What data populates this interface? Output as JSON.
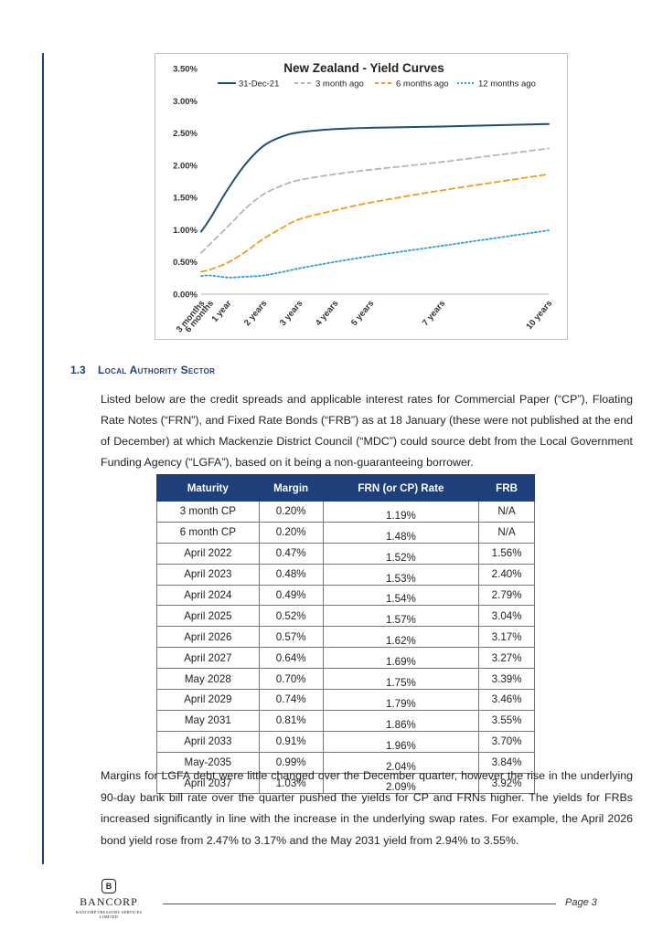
{
  "chart_data": {
    "type": "line",
    "title": "New Zealand - Yield Curves",
    "categories": [
      "3 months",
      "6 months",
      "1 year",
      "2 years",
      "3 years",
      "4 years",
      "5 years",
      "7 years",
      "10 years"
    ],
    "category_positions": [
      0.25,
      0.5,
      1,
      2,
      3,
      4,
      5,
      7,
      10
    ],
    "ylim": [
      0,
      3.5
    ],
    "yticks": [
      "0.00%",
      "0.50%",
      "1.00%",
      "1.50%",
      "2.00%",
      "2.50%",
      "3.00%",
      "3.50%"
    ],
    "legend_position": "top",
    "series": [
      {
        "name": "31-Dec-21",
        "color": "#1f4e79",
        "dash": "solid",
        "x": [
          0.25,
          0.5,
          1,
          1.5,
          2,
          2.5,
          3,
          4,
          5,
          7,
          10
        ],
        "y": [
          0.97,
          1.17,
          1.63,
          2.02,
          2.3,
          2.44,
          2.51,
          2.56,
          2.58,
          2.6,
          2.64
        ]
      },
      {
        "name": "3 month ago",
        "color": "#b5b5b5",
        "dash": "dashed",
        "x": [
          0.25,
          0.5,
          1,
          1.5,
          2,
          2.5,
          3,
          4,
          5,
          7,
          10
        ],
        "y": [
          0.64,
          0.78,
          1.05,
          1.33,
          1.55,
          1.68,
          1.77,
          1.86,
          1.93,
          2.05,
          2.26
        ]
      },
      {
        "name": "6 months ago",
        "color": "#f29b1d",
        "dash": "dashed",
        "x": [
          0.25,
          0.5,
          1,
          1.5,
          2,
          2.5,
          3,
          4,
          5,
          7,
          10
        ],
        "y": [
          0.35,
          0.38,
          0.49,
          0.66,
          0.86,
          1.02,
          1.16,
          1.3,
          1.42,
          1.61,
          1.86
        ]
      },
      {
        "name": "12 months ago",
        "color": "#2e9fd8",
        "dash": "dotted",
        "x": [
          0.25,
          0.5,
          1,
          1.5,
          2,
          2.5,
          3,
          4,
          5,
          7,
          10
        ],
        "y": [
          0.28,
          0.29,
          0.26,
          0.27,
          0.29,
          0.34,
          0.4,
          0.5,
          0.59,
          0.75,
          0.99
        ]
      }
    ]
  },
  "section": {
    "number": "1.3",
    "title": "Local Authority Sector"
  },
  "intro_text": "Listed below are the credit spreads and applicable interest rates for Commercial Paper (“CP”), Floating Rate Notes (“FRN”), and Fixed Rate Bonds (“FRB”) as at 18 January (these were not published at the end of December) at which Mackenzie District Council (“MDC”) could source debt from the Local Government Funding Agency (“LGFA”), based on it being a non-guaranteeing borrower.",
  "table": {
    "headers": [
      "Maturity",
      "Margin",
      "FRN (or CP) Rate",
      "FRB"
    ],
    "rows": [
      [
        "3 month CP",
        "0.20%",
        "1.19%",
        "N/A"
      ],
      [
        "6 month CP",
        "0.20%",
        "1.48%",
        "N/A"
      ],
      [
        "April 2022",
        "0.47%",
        "1.52%",
        "1.56%"
      ],
      [
        "April 2023",
        "0.48%",
        "1.53%",
        "2.40%"
      ],
      [
        "April 2024",
        "0.49%",
        "1.54%",
        "2.79%"
      ],
      [
        "April 2025",
        "0.52%",
        "1.57%",
        "3.04%"
      ],
      [
        "April 2026",
        "0.57%",
        "1.62%",
        "3.17%"
      ],
      [
        "April 2027",
        "0.64%",
        "1.69%",
        "3.27%"
      ],
      [
        "May 2028",
        "0.70%",
        "1.75%",
        "3.39%"
      ],
      [
        "April 2029",
        "0.74%",
        "1.79%",
        "3.46%"
      ],
      [
        "May 2031",
        "0.81%",
        "1.86%",
        "3.55%"
      ],
      [
        "April 2033",
        "0.91%",
        "1.96%",
        "3.70%"
      ],
      [
        "May-2035",
        "0.99%",
        "2.04%",
        "3.84%"
      ],
      [
        "April 2037",
        "1.03%",
        "2.09%",
        "3.92%"
      ]
    ]
  },
  "closing_text": "Margins for LGFA debt were little changed over the December quarter, however the rise in the underlying 90-day bank bill rate over the quarter pushed the yields for CP and FRNs higher. The yields for FRBs increased significantly in line with the increase in the underlying swap rates. For example, the April 2026 bond yield rose from 2.47% to 3.17% and the May 2031 yield from 2.94% to 3.55%.",
  "footer": {
    "logo_mark": "B",
    "logo_brand": "BANCORP",
    "logo_sub": "BANCORP TREASURY SERVICES LIMITED",
    "page_label": "Page 3"
  }
}
